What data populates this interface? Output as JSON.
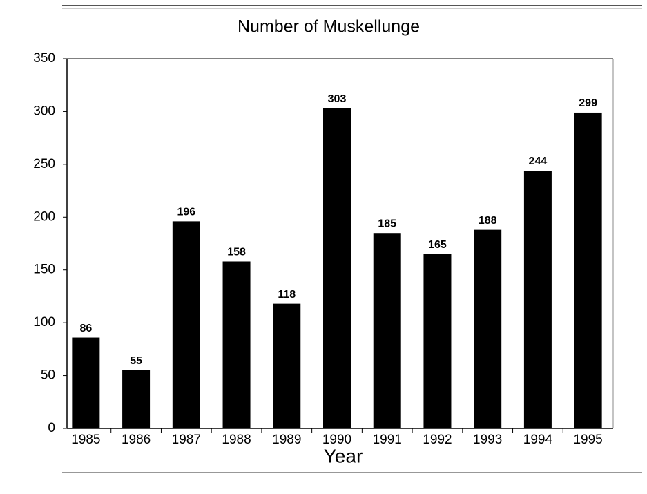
{
  "chart_data": {
    "type": "bar",
    "title": "Number of Muskellunge",
    "xlabel": "Year",
    "categories": [
      "1985",
      "1986",
      "1987",
      "1988",
      "1989",
      "1990",
      "1991",
      "1992",
      "1993",
      "1994",
      "1995"
    ],
    "values": [
      86,
      55,
      196,
      158,
      118,
      303,
      185,
      165,
      188,
      244,
      299
    ],
    "color": "#000000",
    "ylim": [
      0,
      350
    ],
    "yticks": [
      0,
      50,
      100,
      150,
      200,
      250,
      300,
      350
    ],
    "grid": false
  }
}
